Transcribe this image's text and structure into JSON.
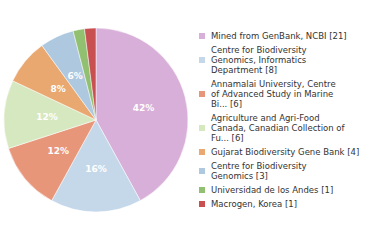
{
  "chart_data": {
    "type": "pie",
    "categories": [
      "Mined from GenBank, NCBI [21]",
      "Centre for Biodiversity\nGenomics, Informatics\nDepartment [8]",
      "Annamalai University, Centre\nof Advanced Study in Marine\nBi... [6]",
      "Agriculture and Agri-Food\nCanada, Canadian Collection of\nFu... [6]",
      "Gujarat Biodiversity Gene Bank [4]",
      "Centre for Biodiversity\nGenomics [3]",
      "Universidad de los Andes [1]",
      "Macrogen, Korea [1]"
    ],
    "values": [
      42,
      16,
      12,
      12,
      8,
      6,
      2,
      2
    ],
    "value_labels": [
      "42%",
      "16%",
      "12%",
      "12%",
      "8%",
      "6%",
      null,
      null
    ],
    "colors": [
      "#d8afd8",
      "#c5d8ea",
      "#e8967a",
      "#d6e8c0",
      "#e8a870",
      "#aec8e0",
      "#90c070",
      "#c85050"
    ],
    "data_labels": true,
    "legend": "right"
  }
}
